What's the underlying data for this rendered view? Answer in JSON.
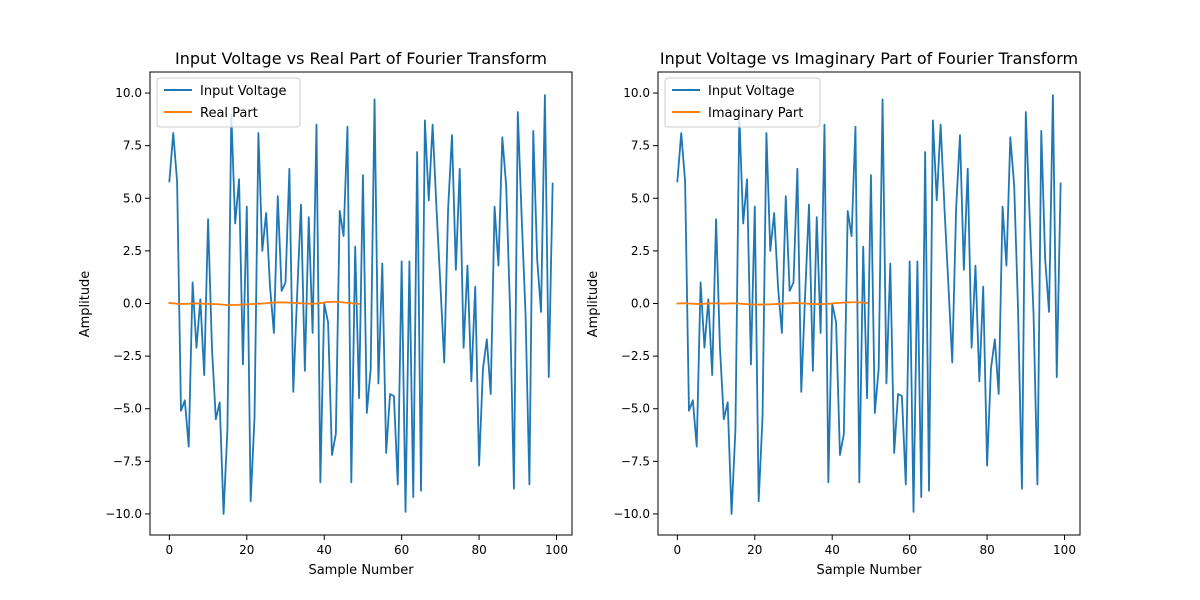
{
  "chart_data": [
    {
      "type": "line",
      "title": "Input Voltage vs Real Part of Fourier Transform",
      "xlabel": "Sample Number",
      "ylabel": "Amplitude",
      "xlim": [
        -5,
        104
      ],
      "ylim": [
        -11,
        11
      ],
      "xticks": [
        0,
        20,
        40,
        60,
        80,
        100
      ],
      "xtick_labels": [
        "0",
        "20",
        "40",
        "60",
        "80",
        "100"
      ],
      "yticks": [
        -10,
        -7.5,
        -5,
        -2.5,
        0,
        2.5,
        5,
        7.5,
        10
      ],
      "ytick_labels": [
        "−10.0",
        "−7.5",
        "−5.0",
        "−2.5",
        "0.0",
        "2.5",
        "5.0",
        "7.5",
        "10.0"
      ],
      "legend_position": "top-left",
      "grid": false,
      "series": [
        {
          "name": "Input Voltage",
          "color": "#1f77b4",
          "x_start": 0,
          "values": [
            5.8,
            8.1,
            5.8,
            -5.1,
            -4.6,
            -6.8,
            1.0,
            -2.1,
            0.2,
            -3.4,
            4.0,
            -2.1,
            -5.5,
            -4.7,
            -10.0,
            -6.0,
            9.0,
            3.8,
            5.9,
            -2.9,
            4.6,
            -9.4,
            -5.4,
            8.1,
            2.5,
            4.3,
            0.8,
            -1.4,
            5.1,
            0.6,
            1.0,
            6.4,
            -4.2,
            0.4,
            4.7,
            -3.2,
            4.1,
            -1.4,
            8.5,
            -8.5,
            0.0,
            -0.9,
            -7.2,
            -6.2,
            4.4,
            3.2,
            8.4,
            -8.5,
            2.7,
            -4.5,
            6.1,
            -5.2,
            -3.1,
            9.7,
            -3.8,
            1.9,
            -7.1,
            -4.3,
            -4.4,
            -8.6,
            2.0,
            -9.9,
            2.0,
            -9.2,
            7.2,
            -8.9,
            8.7,
            4.9,
            8.5,
            4.5,
            0.9,
            -2.8,
            4.5,
            8.0,
            1.6,
            6.4,
            -2.1,
            1.8,
            -3.7,
            0.8,
            -7.7,
            -3.1,
            -1.7,
            -4.3,
            4.6,
            1.8,
            7.9,
            5.6,
            -0.3,
            -8.8,
            9.1,
            4.1,
            -0.5,
            -8.6,
            8.2,
            2.1,
            -0.4,
            9.9,
            -3.5,
            5.7
          ]
        },
        {
          "name": "Real Part",
          "color": "#ff7f0e",
          "x_start": 0,
          "values": [
            0.02,
            0.01,
            -0.01,
            -0.02,
            -0.02,
            -0.01,
            0.0,
            0.01,
            0.0,
            -0.01,
            -0.02,
            -0.02,
            -0.03,
            -0.04,
            -0.06,
            -0.07,
            -0.07,
            -0.07,
            -0.06,
            -0.05,
            -0.04,
            -0.03,
            -0.02,
            -0.01,
            0.0,
            0.01,
            0.03,
            0.04,
            0.05,
            0.05,
            0.05,
            0.04,
            0.03,
            0.02,
            0.01,
            0.0,
            -0.01,
            -0.01,
            0.0,
            0.02,
            0.05,
            0.07,
            0.08,
            0.08,
            0.07,
            0.05,
            0.03,
            0.01,
            -0.01,
            -0.02
          ]
        }
      ]
    },
    {
      "type": "line",
      "title": "Input Voltage vs Imaginary Part of Fourier Transform",
      "xlabel": "Sample Number",
      "ylabel": "Amplitude",
      "xlim": [
        -5,
        104
      ],
      "ylim": [
        -11,
        11
      ],
      "xticks": [
        0,
        20,
        40,
        60,
        80,
        100
      ],
      "xtick_labels": [
        "0",
        "20",
        "40",
        "60",
        "80",
        "100"
      ],
      "yticks": [
        -10,
        -7.5,
        -5,
        -2.5,
        0,
        2.5,
        5,
        7.5,
        10
      ],
      "ytick_labels": [
        "−10.0",
        "−7.5",
        "−5.0",
        "−2.5",
        "0.0",
        "2.5",
        "5.0",
        "7.5",
        "10.0"
      ],
      "legend_position": "top-left",
      "grid": false,
      "series": [
        {
          "name": "Input Voltage",
          "color": "#1f77b4",
          "x_start": 0,
          "values": [
            5.8,
            8.1,
            5.8,
            -5.1,
            -4.6,
            -6.8,
            1.0,
            -2.1,
            0.2,
            -3.4,
            4.0,
            -2.1,
            -5.5,
            -4.7,
            -10.0,
            -6.0,
            9.0,
            3.8,
            5.9,
            -2.9,
            4.6,
            -9.4,
            -5.4,
            8.1,
            2.5,
            4.3,
            0.8,
            -1.4,
            5.1,
            0.6,
            1.0,
            6.4,
            -4.2,
            0.4,
            4.7,
            -3.2,
            4.1,
            -1.4,
            8.5,
            -8.5,
            0.0,
            -0.9,
            -7.2,
            -6.2,
            4.4,
            3.2,
            8.4,
            -8.5,
            2.7,
            -4.5,
            6.1,
            -5.2,
            -3.1,
            9.7,
            -3.8,
            1.9,
            -7.1,
            -4.3,
            -4.4,
            -8.6,
            2.0,
            -9.9,
            2.0,
            -9.2,
            7.2,
            -8.9,
            8.7,
            4.9,
            8.5,
            4.5,
            0.9,
            -2.8,
            4.5,
            8.0,
            1.6,
            6.4,
            -2.1,
            1.8,
            -3.7,
            0.8,
            -7.7,
            -3.1,
            -1.7,
            -4.3,
            4.6,
            1.8,
            7.9,
            5.6,
            -0.3,
            -8.8,
            9.1,
            4.1,
            -0.5,
            -8.6,
            8.2,
            2.1,
            -0.4,
            9.9,
            -3.5,
            5.7
          ]
        },
        {
          "name": "Imaginary Part",
          "color": "#ff7f0e",
          "x_start": 0,
          "values": [
            0.0,
            0.01,
            0.01,
            0.0,
            -0.01,
            -0.02,
            -0.02,
            -0.01,
            0.0,
            0.01,
            0.01,
            0.0,
            -0.01,
            0.0,
            0.01,
            0.01,
            0.0,
            -0.02,
            -0.03,
            -0.04,
            -0.05,
            -0.05,
            -0.05,
            -0.04,
            -0.04,
            -0.03,
            -0.02,
            -0.01,
            0.0,
            0.01,
            0.02,
            0.02,
            0.01,
            0.0,
            -0.01,
            -0.02,
            -0.03,
            -0.03,
            -0.02,
            -0.01,
            0.0,
            0.02,
            0.03,
            0.04,
            0.05,
            0.06,
            0.06,
            0.05,
            0.04,
            0.02
          ]
        }
      ]
    }
  ]
}
